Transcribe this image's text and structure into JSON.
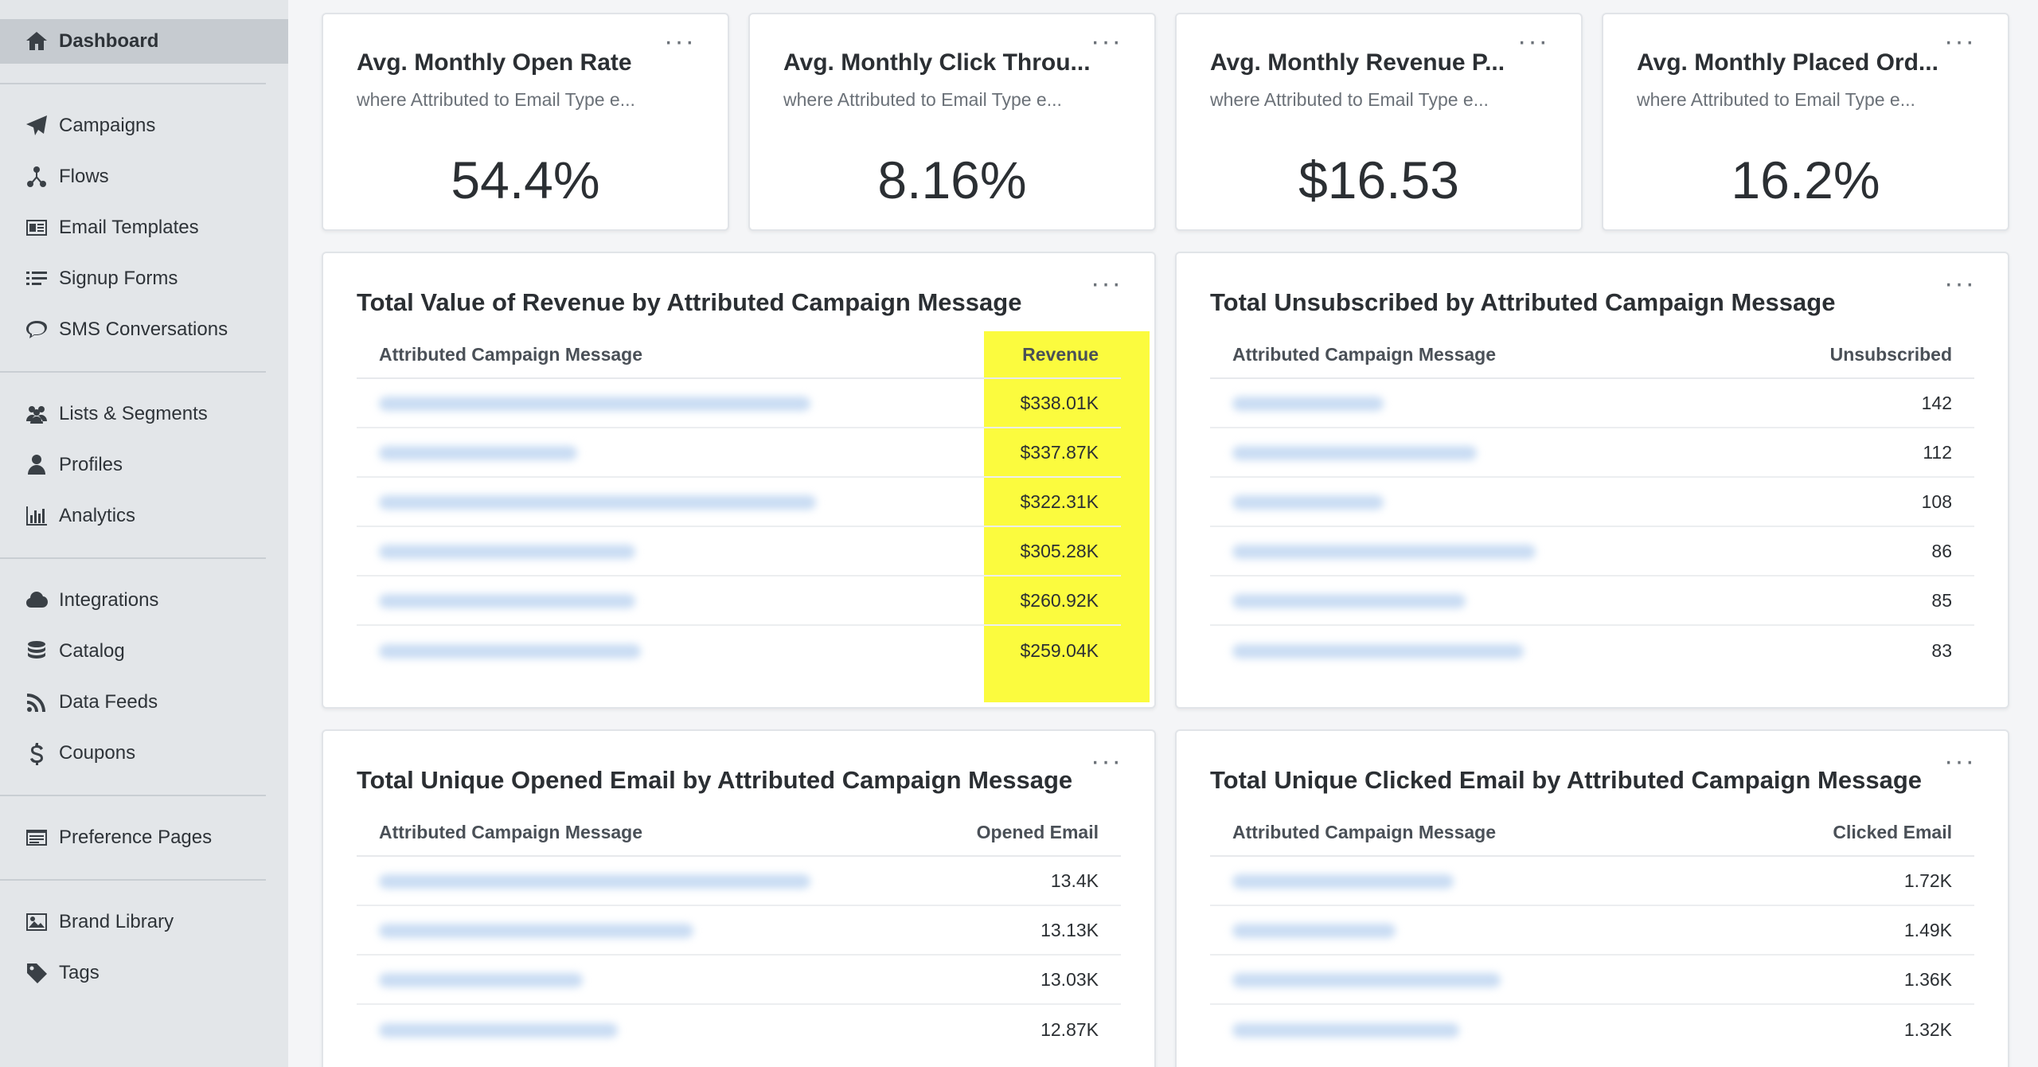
{
  "sidebar": {
    "groups": [
      [
        {
          "label": "Dashboard",
          "icon": "home-icon",
          "active": true
        }
      ],
      [
        {
          "label": "Campaigns",
          "icon": "paper-plane-icon"
        },
        {
          "label": "Flows",
          "icon": "flows-icon"
        },
        {
          "label": "Email Templates",
          "icon": "email-template-icon"
        },
        {
          "label": "Signup Forms",
          "icon": "signup-form-icon"
        },
        {
          "label": "SMS Conversations",
          "icon": "chat-bubble-icon"
        }
      ],
      [
        {
          "label": "Lists & Segments",
          "icon": "users-icon"
        },
        {
          "label": "Profiles",
          "icon": "user-icon"
        },
        {
          "label": "Analytics",
          "icon": "bar-chart-icon"
        }
      ],
      [
        {
          "label": "Integrations",
          "icon": "cloud-icon"
        },
        {
          "label": "Catalog",
          "icon": "database-icon"
        },
        {
          "label": "Data Feeds",
          "icon": "rss-icon"
        },
        {
          "label": "Coupons",
          "icon": "dollar-icon"
        }
      ],
      [
        {
          "label": "Preference Pages",
          "icon": "preference-page-icon"
        }
      ],
      [
        {
          "label": "Brand Library",
          "icon": "image-icon"
        },
        {
          "label": "Tags",
          "icon": "tag-icon"
        }
      ]
    ]
  },
  "kpis": [
    {
      "title": "Avg. Monthly Open Rate",
      "subtitle": "where Attributed to Email Type e...",
      "value": "54.4%"
    },
    {
      "title": "Avg. Monthly Click Throu...",
      "subtitle": "where Attributed to Email Type e...",
      "value": "8.16%"
    },
    {
      "title": "Avg. Monthly Revenue P...",
      "subtitle": "where Attributed to Email Type e...",
      "value": "$16.53"
    },
    {
      "title": "Avg. Monthly Placed Ord...",
      "subtitle": "where Attributed to Email Type e...",
      "value": "16.2%"
    }
  ],
  "tables": {
    "revenue": {
      "title": "Total Value of Revenue by Attributed Campaign Message",
      "col_name": "Attributed Campaign Message",
      "col_value": "Revenue",
      "highlight_color": "#fbfb3e",
      "rows": [
        {
          "value": "$338.01K",
          "blur": 0.74
        },
        {
          "value": "$337.87K",
          "blur": 0.34
        },
        {
          "value": "$322.31K",
          "blur": 0.75
        },
        {
          "value": "$305.28K",
          "blur": 0.44
        },
        {
          "value": "$260.92K",
          "blur": 0.44
        },
        {
          "value": "$259.04K",
          "blur": 0.45
        }
      ]
    },
    "unsubscribed": {
      "title": "Total Unsubscribed by Attributed Campaign Message",
      "col_name": "Attributed Campaign Message",
      "col_value": "Unsubscribed",
      "rows": [
        {
          "value": "142",
          "blur": 0.26
        },
        {
          "value": "112",
          "blur": 0.42
        },
        {
          "value": "108",
          "blur": 0.26
        },
        {
          "value": "86",
          "blur": 0.52
        },
        {
          "value": "85",
          "blur": 0.4
        },
        {
          "value": "83",
          "blur": 0.5
        }
      ]
    },
    "opened": {
      "title": "Total Unique Opened Email by Attributed Campaign Message",
      "col_name": "Attributed Campaign Message",
      "col_value": "Opened Email",
      "rows": [
        {
          "value": "13.4K",
          "blur": 0.74
        },
        {
          "value": "13.13K",
          "blur": 0.54
        },
        {
          "value": "13.03K",
          "blur": 0.35
        },
        {
          "value": "12.87K",
          "blur": 0.41
        }
      ]
    },
    "clicked": {
      "title": "Total Unique Clicked Email by Attributed Campaign Message",
      "col_name": "Attributed Campaign Message",
      "col_value": "Clicked Email",
      "rows": [
        {
          "value": "1.72K",
          "blur": 0.38
        },
        {
          "value": "1.49K",
          "blur": 0.28
        },
        {
          "value": "1.36K",
          "blur": 0.46
        },
        {
          "value": "1.32K",
          "blur": 0.39
        }
      ]
    }
  }
}
